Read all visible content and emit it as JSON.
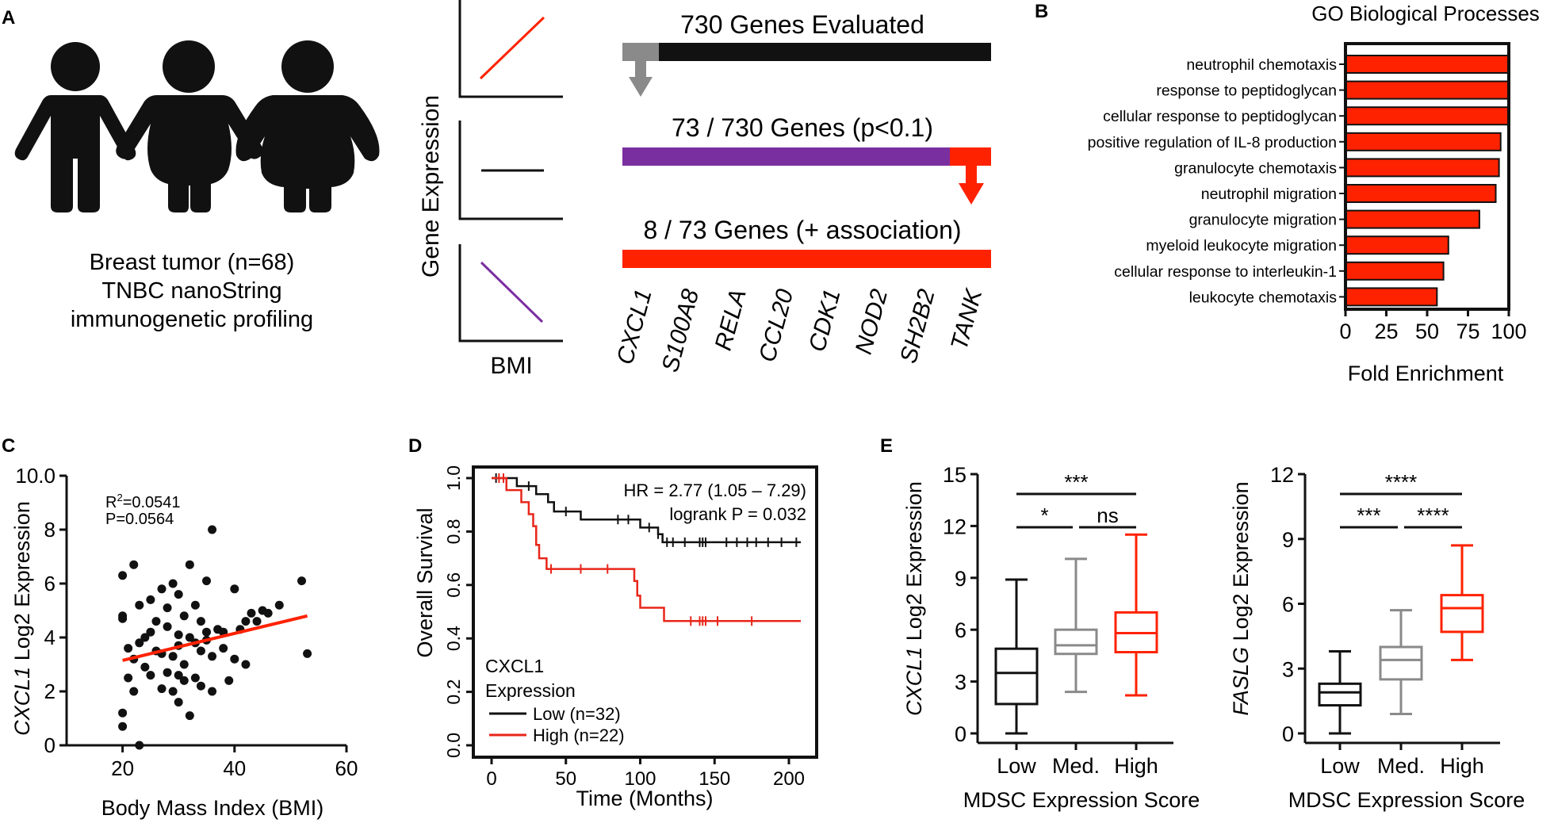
{
  "colors": {
    "black": "#111111",
    "red": "#ff2200",
    "purple": "#7a2fa0",
    "gray": "#8a8a8a",
    "ko_red": "#e8261a"
  },
  "panels": {
    "A": "A",
    "B": "B",
    "C": "C",
    "D": "D",
    "E": "E"
  },
  "panelA": {
    "icon_names": [
      "person-icon",
      "person-icon",
      "person-icon"
    ],
    "caption": [
      "Breast tumor (n=68)",
      "TNBC nanoString",
      "immunogenetic profiling"
    ],
    "y_label": "Gene Expression",
    "x_label": "BMI",
    "trend_types": [
      "positive",
      "flat",
      "negative"
    ],
    "funnel": [
      {
        "label": "730 Genes Evaluated",
        "highlight_share": 0.1,
        "highlight_side": "left"
      },
      {
        "label": "73 / 730 Genes (p<0.1)",
        "highlight_share": 0.11,
        "highlight_side": "right"
      },
      {
        "label": "8 / 73 Genes (+ association)",
        "highlight_share": 1.0,
        "highlight_side": "all"
      }
    ],
    "genes": [
      "CXCL1",
      "S100A8",
      "RELA",
      "CCL20",
      "CDK1",
      "NOD2",
      "SH2B2",
      "TANK"
    ]
  },
  "chart_data": [
    {
      "id": "B",
      "type": "bar",
      "orientation": "horizontal",
      "title": "GO Biological Processes",
      "xlabel": "Fold Enrichment",
      "xlim": [
        0,
        100
      ],
      "xticks": [
        0,
        25,
        50,
        75,
        100
      ],
      "categories": [
        "neutrophil chemotaxis",
        "response to peptidoglycan",
        "cellular response to peptidoglycan",
        "positive regulation of IL-8 production",
        "granulocyte chemotaxis",
        "neutrophil migration",
        "granulocyte migration",
        "myeloid leukocyte migration",
        "cellular response to interleukin-1",
        "leukocyte chemotaxis"
      ],
      "values": [
        100,
        100,
        100,
        95,
        94,
        92,
        82,
        63,
        60,
        56
      ]
    },
    {
      "id": "C",
      "type": "scatter",
      "xlabel": "Body Mass Index (BMI)",
      "ylabel_italic": "CXCL1",
      "ylabel_rest": " Log2 Expression",
      "xlim": [
        10,
        60
      ],
      "ylim": [
        0,
        10
      ],
      "xticks": [
        20,
        40,
        60
      ],
      "yticks": [
        0,
        2,
        4,
        6,
        8,
        10
      ],
      "ytick_labels": [
        "0",
        "2",
        "4",
        "6",
        "8",
        "10.0"
      ],
      "annotation_r2_base": "R",
      "annotation_r2_sup": "2",
      "annotation_r2_value": "=0.0541",
      "annotation_p": "P=0.0564",
      "fit": {
        "x": [
          20,
          53
        ],
        "y": [
          3.15,
          4.8
        ]
      },
      "points": [
        [
          20,
          0.7
        ],
        [
          20,
          1.2
        ],
        [
          21,
          2.5
        ],
        [
          21,
          3.6
        ],
        [
          22,
          2.0
        ],
        [
          22,
          3.2
        ],
        [
          23,
          0.0
        ],
        [
          20,
          4.7
        ],
        [
          20,
          4.8
        ],
        [
          20,
          6.3
        ],
        [
          22,
          6.7
        ],
        [
          23,
          5.2
        ],
        [
          23,
          3.8
        ],
        [
          24,
          2.9
        ],
        [
          24,
          4.0
        ],
        [
          25,
          2.6
        ],
        [
          25,
          5.4
        ],
        [
          25,
          4.2
        ],
        [
          26,
          3.5
        ],
        [
          26,
          4.6
        ],
        [
          27,
          2.1
        ],
        [
          27,
          3.4
        ],
        [
          27,
          5.8
        ],
        [
          28,
          2.7
        ],
        [
          28,
          4.4
        ],
        [
          28,
          5.1
        ],
        [
          29,
          3.3
        ],
        [
          29,
          6.0
        ],
        [
          29,
          2.0
        ],
        [
          30,
          4.1
        ],
        [
          30,
          3.7
        ],
        [
          30,
          5.6
        ],
        [
          30,
          1.6
        ],
        [
          31,
          2.4
        ],
        [
          31,
          4.8
        ],
        [
          31,
          3.0
        ],
        [
          32,
          6.7
        ],
        [
          32,
          4.0
        ],
        [
          32,
          1.1
        ],
        [
          33,
          3.8
        ],
        [
          33,
          2.5
        ],
        [
          33,
          5.2
        ],
        [
          34,
          3.5
        ],
        [
          34,
          4.6
        ],
        [
          34,
          2.2
        ],
        [
          35,
          4.2
        ],
        [
          35,
          3.9
        ],
        [
          35,
          6.1
        ],
        [
          36,
          3.3
        ],
        [
          36,
          8.0
        ],
        [
          36,
          2.0
        ],
        [
          37,
          4.3
        ],
        [
          38,
          4.2
        ],
        [
          38,
          3.6
        ],
        [
          39,
          2.4
        ],
        [
          40,
          3.2
        ],
        [
          40,
          5.8
        ],
        [
          41,
          4.3
        ],
        [
          42,
          4.6
        ],
        [
          42,
          3.0
        ],
        [
          43,
          4.9
        ],
        [
          44,
          4.6
        ],
        [
          45,
          5.0
        ],
        [
          46,
          4.9
        ],
        [
          48,
          5.2
        ],
        [
          52,
          6.1
        ],
        [
          53,
          3.4
        ],
        [
          30,
          2.6
        ]
      ]
    },
    {
      "id": "D",
      "type": "line",
      "subtype": "kaplan-meier",
      "xlabel": "Time (Months)",
      "ylabel": "Overall Survival",
      "xlim": [
        0,
        210
      ],
      "ylim": [
        0,
        1
      ],
      "xticks": [
        0,
        50,
        100,
        150,
        200
      ],
      "yticks": [
        0.0,
        0.2,
        0.4,
        0.6,
        0.8,
        1.0
      ],
      "ytick_labels": [
        "0.0",
        "0.2",
        "0.4",
        "0.6",
        "0.8",
        "1.0"
      ],
      "annotation_hr": "HR = 2.77 (1.05 – 7.29)",
      "annotation_p": "logrank P = 0.032",
      "legend_title": [
        "CXCL1",
        "Expression"
      ],
      "series": [
        {
          "name": "Low (n=32)",
          "color": "#111111",
          "steps": [
            [
              0,
              1.0
            ],
            [
              17,
              0.97
            ],
            [
              30,
              0.94
            ],
            [
              38,
              0.91
            ],
            [
              42,
              0.875
            ],
            [
              60,
              0.845
            ],
            [
              100,
              0.815
            ],
            [
              112,
              0.79
            ],
            [
              115,
              0.76
            ],
            [
              208,
              0.76
            ]
          ],
          "censors": [
            3,
            25,
            50,
            85,
            92,
            106,
            112,
            118,
            122,
            130,
            140,
            142,
            144,
            158,
            165,
            172,
            178,
            186,
            195,
            205
          ]
        },
        {
          "name": "High (n=22)",
          "color": "#e8261a",
          "steps": [
            [
              0,
              1.0
            ],
            [
              10,
              0.955
            ],
            [
              20,
              0.91
            ],
            [
              25,
              0.865
            ],
            [
              28,
              0.82
            ],
            [
              30,
              0.75
            ],
            [
              32,
              0.7
            ],
            [
              37,
              0.66
            ],
            [
              96,
              0.615
            ],
            [
              98,
              0.56
            ],
            [
              100,
              0.515
            ],
            [
              116,
              0.465
            ],
            [
              208,
              0.465
            ]
          ],
          "censors": [
            5,
            8,
            40,
            60,
            78,
            134,
            140,
            142,
            144,
            152,
            175
          ]
        }
      ]
    },
    {
      "id": "E1",
      "type": "box",
      "ylabel_italic": "CXCL1",
      "ylabel_rest": " Log2 Expression",
      "xlabel": "MDSC Expression Score",
      "ylim": [
        0,
        15
      ],
      "yticks": [
        0,
        3,
        6,
        9,
        12,
        15
      ],
      "categories": [
        "Low",
        "Med.",
        "High"
      ],
      "series_colors": [
        "#111111",
        "#8a8a8a",
        "#ff2200"
      ],
      "boxes": [
        {
          "min": 0.0,
          "q1": 1.7,
          "median": 3.5,
          "q3": 4.9,
          "max": 8.9
        },
        {
          "min": 2.4,
          "q1": 4.6,
          "median": 5.1,
          "q3": 6.0,
          "max": 10.1
        },
        {
          "min": 2.2,
          "q1": 4.7,
          "median": 5.8,
          "q3": 7.0,
          "max": 11.5
        }
      ],
      "significance": [
        {
          "from": 0,
          "to": 2,
          "label": "***"
        },
        {
          "from": 0,
          "to": 1,
          "label": "*"
        },
        {
          "from": 1,
          "to": 2,
          "label": "ns"
        }
      ]
    },
    {
      "id": "E2",
      "type": "box",
      "ylabel_italic": "FASLG",
      "ylabel_rest": " Log2 Expression",
      "xlabel": "MDSC Expression Score",
      "ylim": [
        0,
        12
      ],
      "yticks": [
        0,
        3,
        6,
        9,
        12
      ],
      "categories": [
        "Low",
        "Med.",
        "High"
      ],
      "series_colors": [
        "#111111",
        "#8a8a8a",
        "#ff2200"
      ],
      "boxes": [
        {
          "min": 0.0,
          "q1": 1.3,
          "median": 1.9,
          "q3": 2.3,
          "max": 3.8
        },
        {
          "min": 0.9,
          "q1": 2.5,
          "median": 3.4,
          "q3": 4.0,
          "max": 5.7
        },
        {
          "min": 3.4,
          "q1": 4.7,
          "median": 5.8,
          "q3": 6.4,
          "max": 8.7
        }
      ],
      "significance": [
        {
          "from": 0,
          "to": 2,
          "label": "****"
        },
        {
          "from": 0,
          "to": 1,
          "label": "***"
        },
        {
          "from": 1,
          "to": 2,
          "label": "****"
        }
      ]
    }
  ]
}
